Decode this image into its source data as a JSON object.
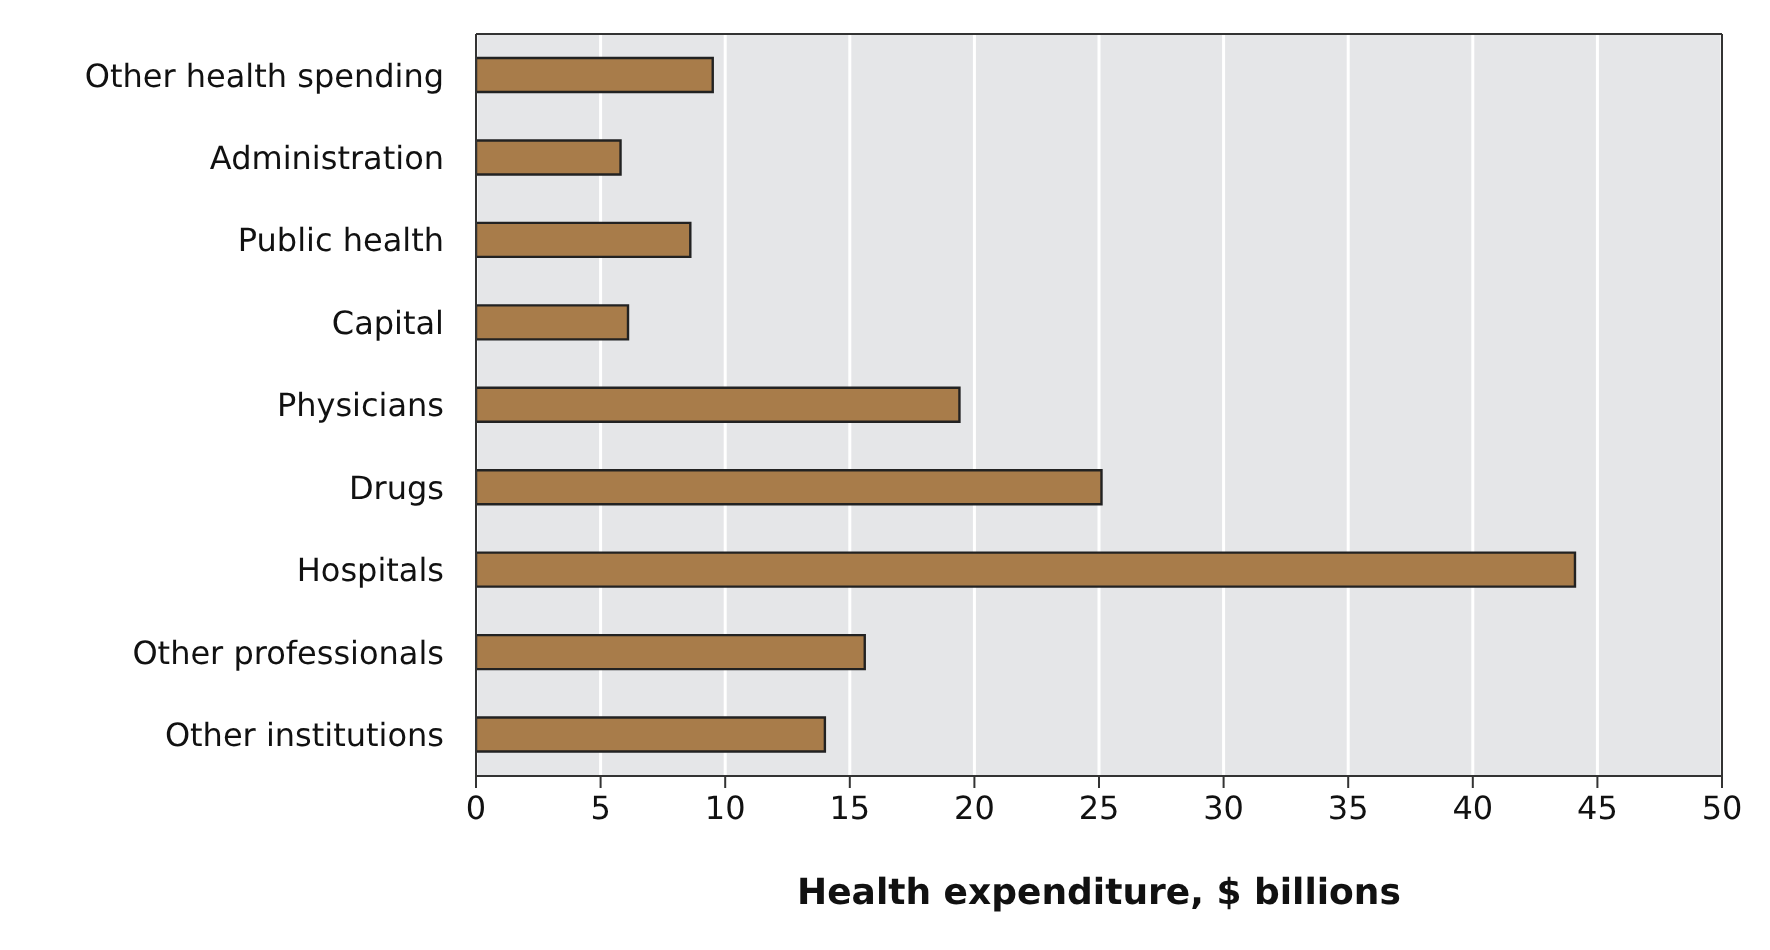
{
  "chart_data": {
    "type": "bar",
    "orientation": "horizontal",
    "xlabel": "Health expenditure, $ billions",
    "categories": [
      "Other health spending",
      "Administration",
      "Public health",
      "Capital",
      "Physicians",
      "Drugs",
      "Hospitals",
      "Other professionals",
      "Other institutions"
    ],
    "values": [
      9.5,
      5.8,
      8.6,
      6.1,
      19.4,
      25.1,
      44.1,
      15.6,
      14.0
    ],
    "color": "#a87c4a",
    "xlim": [
      0,
      50
    ],
    "xticks": [
      0,
      5,
      10,
      15,
      20,
      25,
      30,
      35,
      40,
      45,
      50
    ],
    "grid": "x"
  }
}
